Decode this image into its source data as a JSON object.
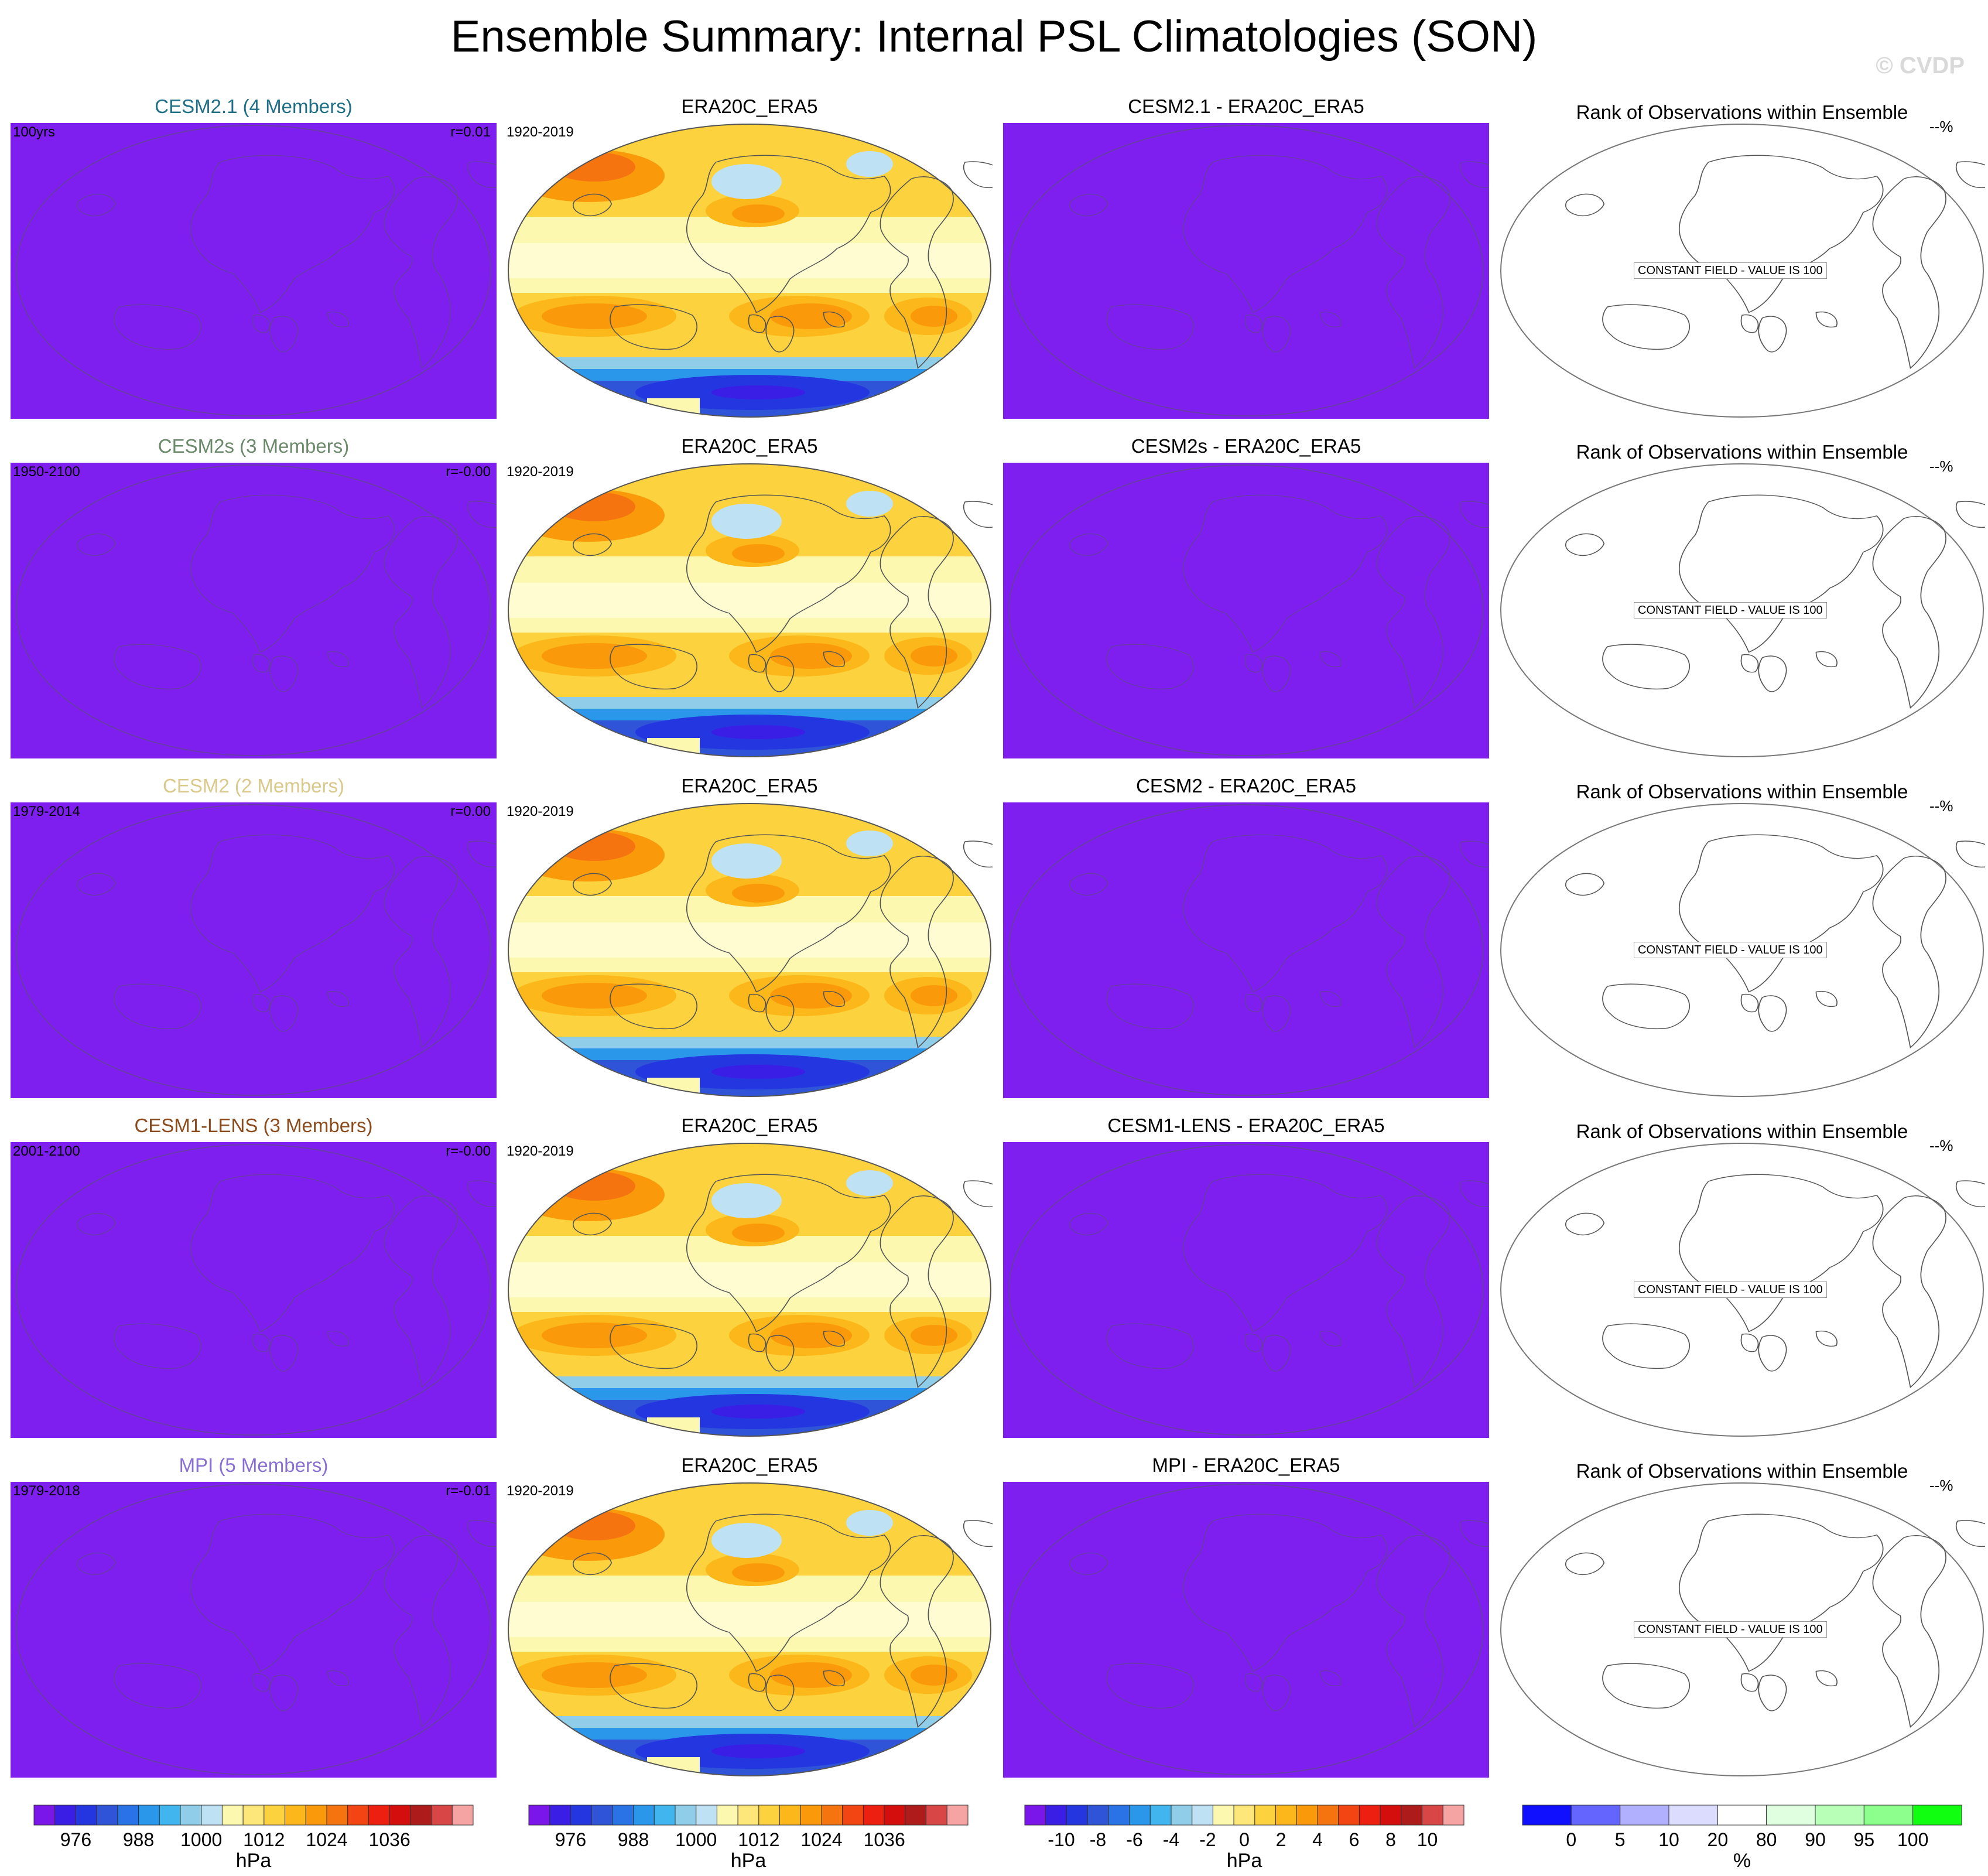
{
  "title": "Ensemble Summary: Internal PSL Climatologies (SON)",
  "credit": "© CVDP",
  "rows": [
    {
      "model": "CESM2.1 (4 Members)",
      "model_color": "#1f6f86",
      "years": "100yrs",
      "r": "r=0.01",
      "obs_title": "ERA20C_ERA5",
      "obs_years": "1920-2019",
      "diff_title": "CESM2.1 - ERA20C_ERA5",
      "rank_title": "Rank of Observations within Ensemble",
      "rank_pct": "--%",
      "rank_note": "CONSTANT FIELD - VALUE IS 100"
    },
    {
      "model": "CESM2s (3 Members)",
      "model_color": "#6b8a6b",
      "years": "1950-2100",
      "r": "r=-0.00",
      "obs_title": "ERA20C_ERA5",
      "obs_years": "1920-2019",
      "diff_title": "CESM2s - ERA20C_ERA5",
      "rank_title": "Rank of Observations within Ensemble",
      "rank_pct": "--%",
      "rank_note": "CONSTANT FIELD - VALUE IS 100"
    },
    {
      "model": "CESM2 (2 Members)",
      "model_color": "#d9c98a",
      "years": "1979-2014",
      "r": "r=0.00",
      "obs_title": "ERA20C_ERA5",
      "obs_years": "1920-2019",
      "diff_title": "CESM2 - ERA20C_ERA5",
      "rank_title": "Rank of Observations within Ensemble",
      "rank_pct": "--%",
      "rank_note": "CONSTANT FIELD - VALUE IS 100"
    },
    {
      "model": "CESM1-LENS (3 Members)",
      "model_color": "#8b4a1c",
      "years": "2001-2100",
      "r": "r=-0.00",
      "obs_title": "ERA20C_ERA5",
      "obs_years": "1920-2019",
      "diff_title": "CESM1-LENS - ERA20C_ERA5",
      "rank_title": "Rank of Observations within Ensemble",
      "rank_pct": "--%",
      "rank_note": "CONSTANT FIELD - VALUE IS 100"
    },
    {
      "model": "MPI (5 Members)",
      "model_color": "#8a6fd4",
      "years": "1979-2018",
      "r": "r=-0.01",
      "obs_title": "ERA20C_ERA5",
      "obs_years": "1920-2019",
      "diff_title": "MPI - ERA20C_ERA5",
      "rank_title": "Rank of Observations within Ensemble",
      "rank_pct": "--%",
      "rank_note": "CONSTANT FIELD - VALUE IS 100"
    }
  ],
  "colors": {
    "model_fill": "#7f1fef",
    "psl_scale": [
      "#7b16ea",
      "#3a1ee6",
      "#2436e0",
      "#2f54d8",
      "#2a73e6",
      "#2a97ea",
      "#41b6ee",
      "#8fcde9",
      "#bfe1f4",
      "#fdf8b0",
      "#fde67a",
      "#fcd33e",
      "#fcb71a",
      "#fa9a0b",
      "#f57410",
      "#f24513",
      "#ed1f10",
      "#d30e0c",
      "#ad1b1b",
      "#d84646",
      "#f5a3a3"
    ],
    "rank_scale": [
      "#1010ff",
      "#6464ff",
      "#b0b0ff",
      "#dcdcff",
      "#ffffff",
      "#e0ffe0",
      "#b8ffb8",
      "#8cff8c",
      "#10ff10"
    ]
  },
  "colorbars": [
    {
      "labels": [
        "976",
        "988",
        "1000",
        "1012",
        "1024",
        "1036"
      ],
      "unit": "hPa"
    },
    {
      "labels": [
        "976",
        "988",
        "1000",
        "1012",
        "1024",
        "1036"
      ],
      "unit": "hPa"
    },
    {
      "labels": [
        "-10",
        "-8",
        "-6",
        "-4",
        "-2",
        "0",
        "2",
        "4",
        "6",
        "8",
        "10"
      ],
      "unit": "hPa"
    },
    {
      "labels": [
        "0",
        "5",
        "10",
        "20",
        "80",
        "90",
        "95",
        "100"
      ],
      "unit": "%"
    }
  ]
}
